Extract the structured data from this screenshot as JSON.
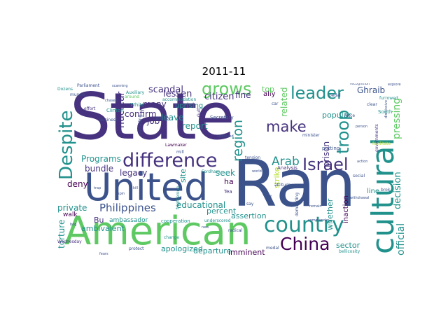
{
  "title": "2011-11",
  "colors": {
    "indigo": "#46327e",
    "blue": "#3b528b",
    "teal": "#21918c",
    "green": "#5ec962",
    "lime": "#b5de2b",
    "yellow": "#d5e21a",
    "purple": "#440154"
  },
  "words": {
    "state": "State",
    "ran": "Ran",
    "united": "United",
    "american": "American",
    "cultural": "cultural",
    "country": "country",
    "despite": "Despite",
    "difference": "difference",
    "israel": "Israel",
    "china": "China",
    "leader": "leader",
    "troop": "troop",
    "grows": "grows",
    "make": "make",
    "arab": "Arab",
    "philippines": "Philippines",
    "region": "region",
    "nuclear": "nuclear",
    "pressing": "pressing",
    "ghraib": "Ghraib",
    "official": "official",
    "decision": "decision",
    "scandal": "scandal",
    "lessen": "lessen",
    "citizen": "citizen",
    "confirm": "confirm",
    "many": "many",
    "programs": "Programs",
    "bundle": "bundle",
    "legacy": "legacy",
    "deny": "deny",
    "job": "job",
    "leave": "leave",
    "report": "report",
    "percent": "percent",
    "educational": "educational",
    "seek": "seek",
    "ha": "ha",
    "fine": "fine",
    "ally": "ally",
    "top": "top",
    "related": "related",
    "prison": "prison",
    "popular": "popular",
    "private": "private",
    "torture": "torture",
    "ambivalent": "ambivalent",
    "apologized": "apologized",
    "departure": "departure",
    "imminent": "imminent",
    "sector": "sector",
    "assertion": "assertion",
    "whether": "whether",
    "inaction": "inaction",
    "line": "line",
    "strike": "strike",
    "site": "site",
    "uprising": "uprising",
    "bu": "Bu",
    "walk": "walk",
    "ambassador": "ambassador",
    "accommodation": "accommodation",
    "white": "White",
    "secretary": "Secretary",
    "society": "society",
    "around": "around",
    "clinton": "Clinton",
    "parliament": "Parliament",
    "auxiliary": "Auxiliary",
    "dozens": "Dozens",
    "muscle": "muscle",
    "effort": "effort",
    "business": "business",
    "lawmaker": "Lawmaker",
    "fordham": "Fordham",
    "frightening": "frightening",
    "tea": "Tea",
    "cooperation": "cooperation",
    "underscored": "underscored",
    "change": "change",
    "protect": "protect",
    "wednesday": "Wednesday",
    "bellicosity": "bellicosity",
    "analysis": "Analysis",
    "tension": "tension",
    "attitude": "attitude",
    "demanding": "demanding",
    "minister": "minister",
    "putting": "putting",
    "south": "South",
    "furrowed": "furrowed",
    "governments": "governments",
    "facilitate": "facilitate",
    "recognition": "recognition",
    "pedal": "pedal",
    "force": "force",
    "clear": "clear",
    "explore": "explore",
    "dismissive": "dismissive",
    "scanning": "scanning",
    "chased": "chased",
    "gulf": "Gulf",
    "including": "including",
    "say": "say",
    "medal": "medal",
    "radical": "radical",
    "social": "social",
    "brok": "brok",
    "car": "car",
    "approved": "approved",
    "mill": "mill",
    "bog": "bog",
    "trap": "trap",
    "fears": "fears",
    "remain": "remain",
    "world": "world",
    "action": "action",
    "commander": "commander",
    "withdrawal": "withdrawal",
    "person": "person",
    "kill": "kill",
    "spin": "spin",
    "new": "new",
    "get": "get"
  }
}
